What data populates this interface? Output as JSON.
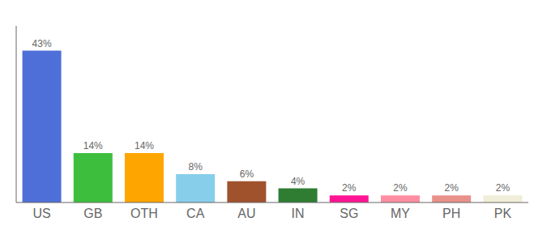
{
  "chart_data": {
    "type": "bar",
    "categories": [
      "US",
      "GB",
      "OTH",
      "CA",
      "AU",
      "IN",
      "SG",
      "MY",
      "PH",
      "PK"
    ],
    "values": [
      43,
      14,
      14,
      8,
      6,
      4,
      2,
      2,
      2,
      2
    ],
    "value_labels": [
      "43%",
      "14%",
      "14%",
      "8%",
      "6%",
      "4%",
      "2%",
      "2%",
      "2%",
      "2%"
    ],
    "colors": [
      "#4F6FD8",
      "#3DBF3D",
      "#FFA500",
      "#87CEEB",
      "#A0522D",
      "#2E7D32",
      "#FF1493",
      "#FF8DA1",
      "#E8908A",
      "#F0EDD8"
    ],
    "ylim": [
      0,
      50
    ],
    "data_labels": true,
    "tick_labels": "x"
  }
}
